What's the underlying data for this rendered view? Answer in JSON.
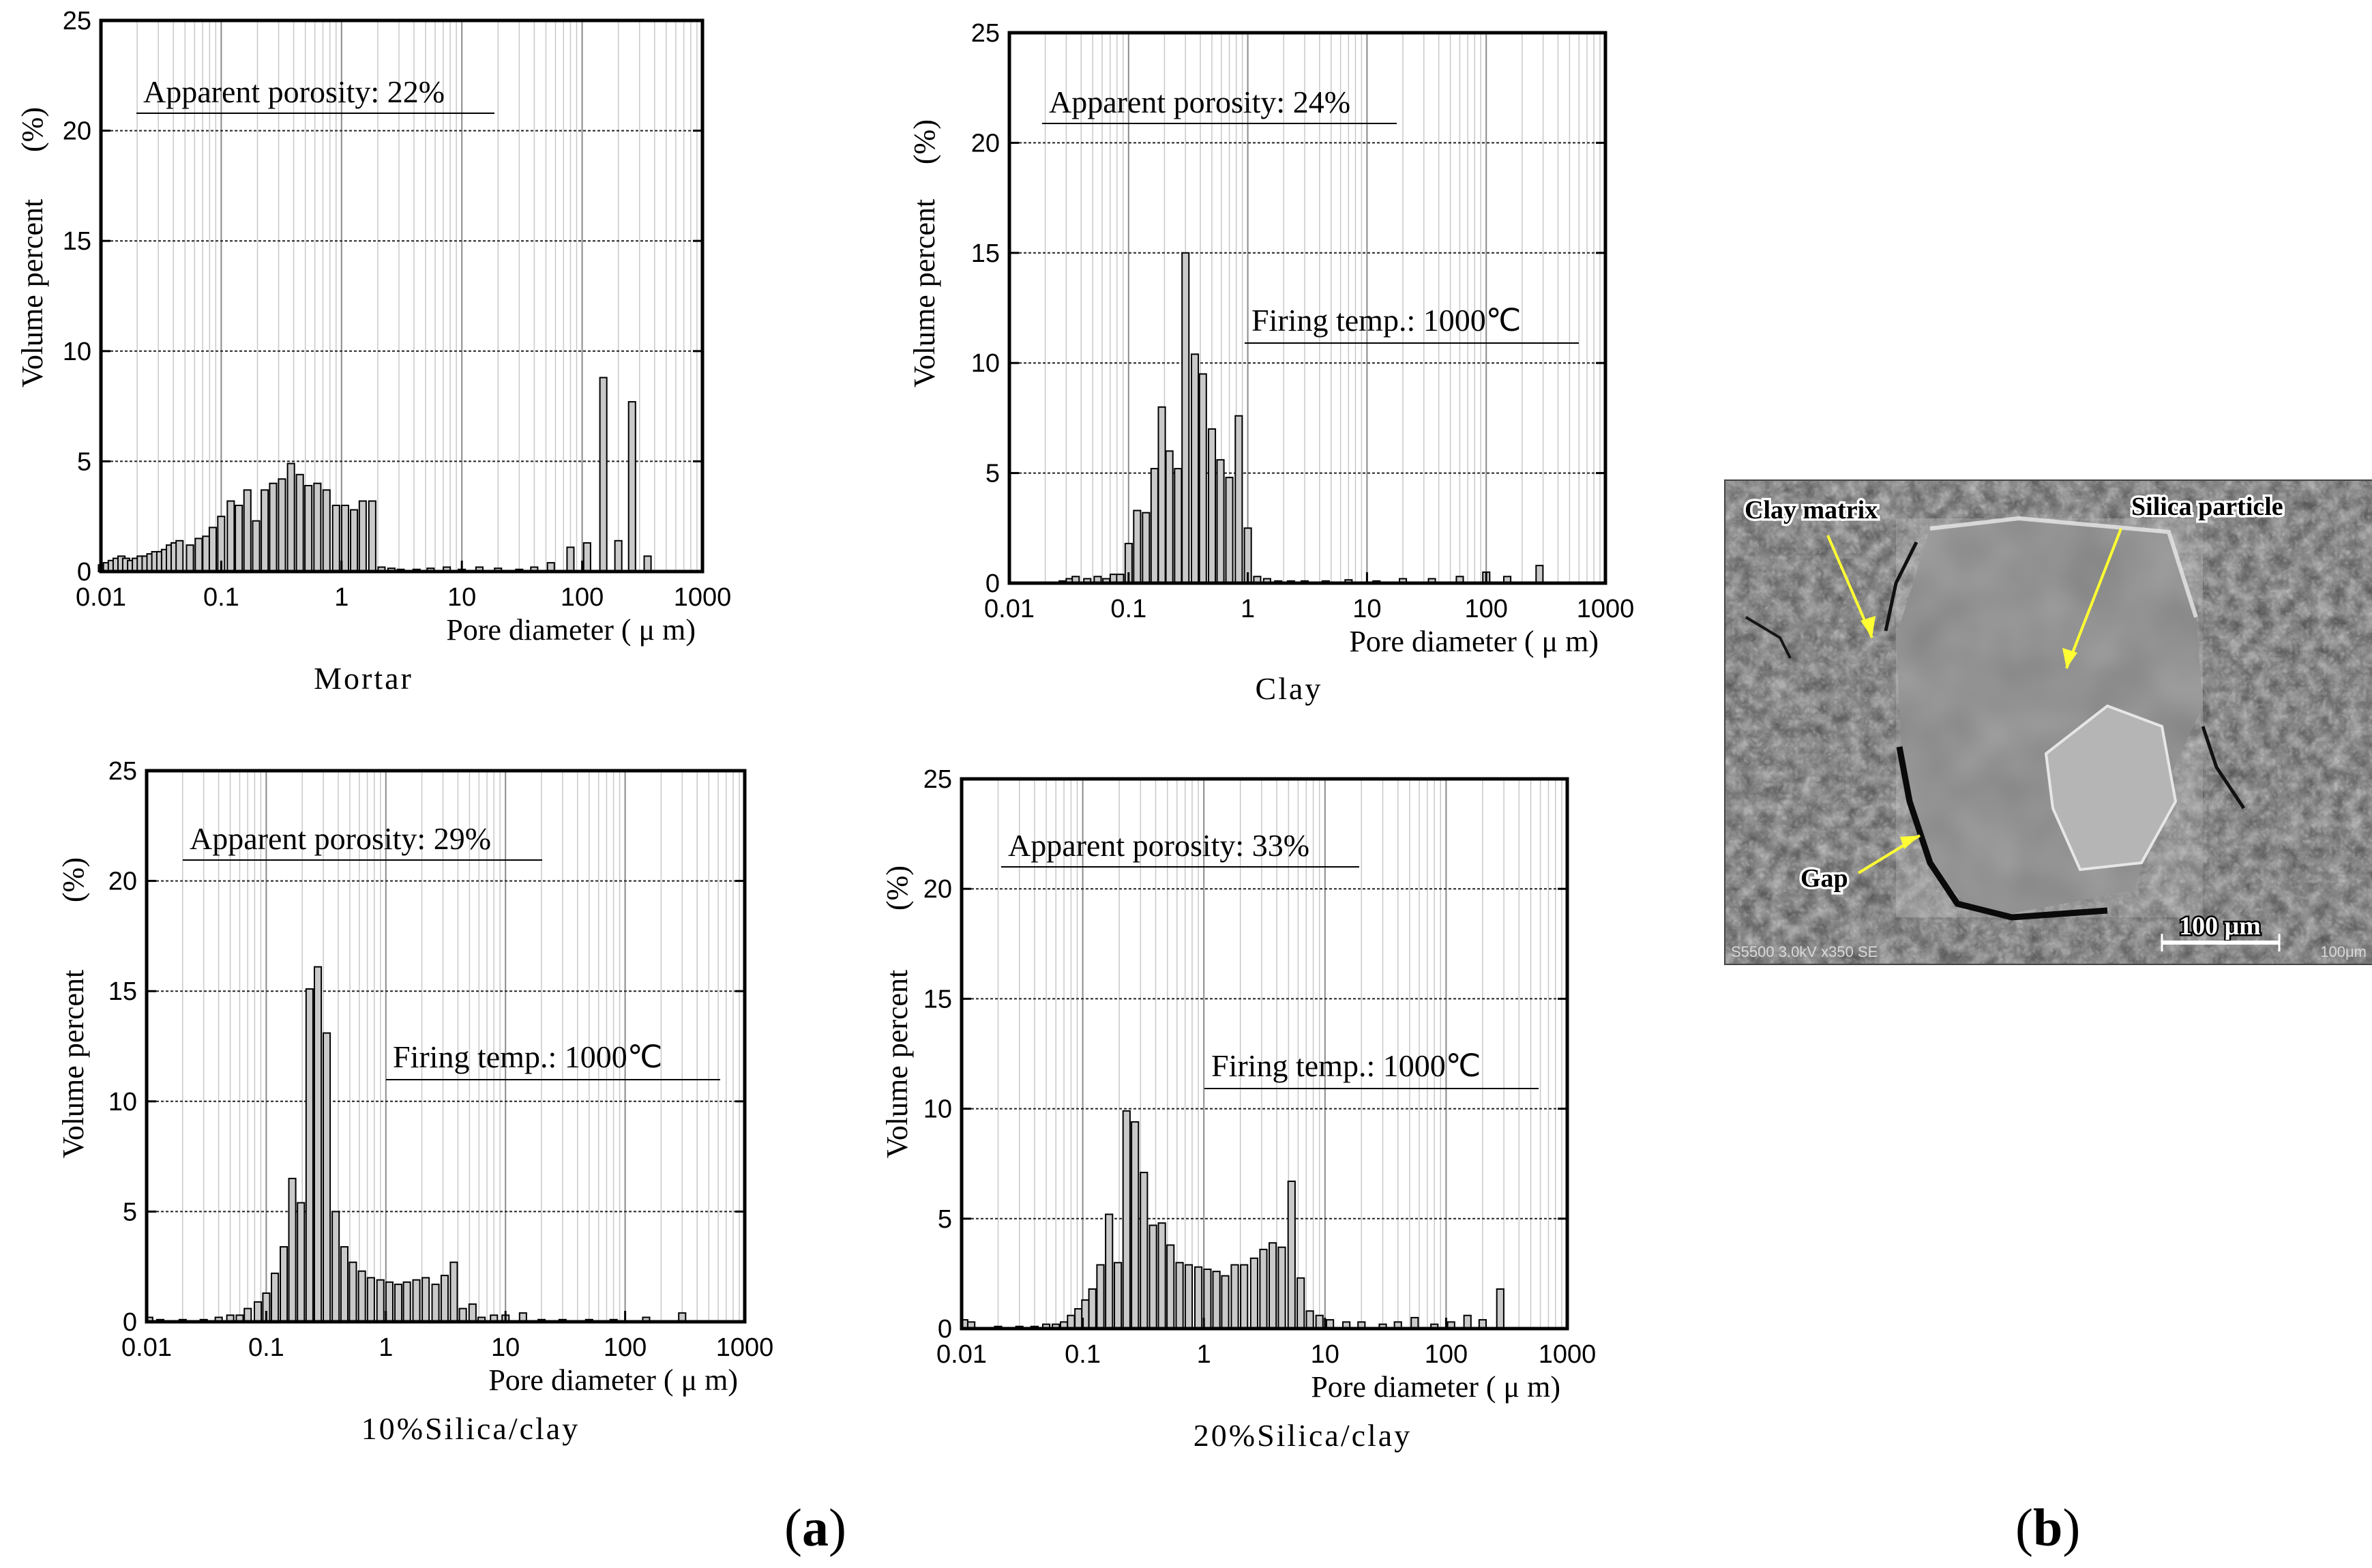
{
  "panel_labels": {
    "a": "a",
    "b": "b"
  },
  "paren_open": "(",
  "paren_close": ")",
  "axis_text": {
    "ylabel": "Volume percent",
    "ylabel_unit": "(%)",
    "xlabel": "Pore diameter ( μ m)",
    "firing_temp": "Firing temp.: 1000℃"
  },
  "chart_data": [
    {
      "type": "bar",
      "title": "Mortar",
      "annotation": "Apparent porosity: 22%",
      "firing_temp": false,
      "xlabel": "Pore diameter ( μ m)",
      "ylabel": "Volume percent (%)",
      "xscale": "log",
      "xlim": [
        0.01,
        1000
      ],
      "ylim": [
        0,
        25
      ],
      "xticks": [
        "0.01",
        "0.1",
        "1",
        "10",
        "100",
        "1000"
      ],
      "yticks": [
        "0",
        "5",
        "10",
        "15",
        "20",
        "25"
      ],
      "x": [
        0.0102,
        0.0112,
        0.0123,
        0.0135,
        0.0148,
        0.0162,
        0.0178,
        0.0195,
        0.0214,
        0.0235,
        0.0258,
        0.0283,
        0.0311,
        0.0341,
        0.0374,
        0.041,
        0.045,
        0.055,
        0.065,
        0.075,
        0.085,
        0.1,
        0.12,
        0.14,
        0.165,
        0.195,
        0.23,
        0.27,
        0.32,
        0.38,
        0.45,
        0.53,
        0.63,
        0.75,
        0.9,
        1.07,
        1.27,
        1.5,
        1.8,
        2.15,
        2.6,
        3.1,
        4.2,
        5.5,
        7.5,
        10,
        14,
        20,
        30,
        40,
        55,
        80,
        110,
        150,
        200,
        260,
        350
      ],
      "values": [
        0.3,
        0.4,
        0.5,
        0.6,
        0.7,
        0.6,
        0.5,
        0.6,
        0.7,
        0.7,
        0.8,
        0.9,
        0.9,
        1.0,
        1.2,
        1.3,
        1.4,
        1.2,
        1.5,
        1.6,
        2.0,
        2.5,
        3.2,
        3.0,
        3.7,
        2.3,
        3.7,
        4.0,
        4.2,
        4.9,
        4.4,
        3.9,
        4.0,
        3.7,
        3.0,
        3.0,
        2.8,
        3.2,
        3.2,
        0.2,
        0.15,
        0.1,
        0.1,
        0.15,
        0.2,
        0.1,
        0.2,
        0.15,
        0.1,
        0.2,
        0.4,
        1.1,
        1.3,
        8.8,
        1.4,
        7.7,
        0.7
      ]
    },
    {
      "type": "bar",
      "title": "Clay",
      "annotation": "Apparent porosity: 24%",
      "firing_temp": true,
      "xlabel": "Pore diameter ( μ m)",
      "ylabel": "Volume percent (%)",
      "xscale": "log",
      "xlim": [
        0.01,
        1000
      ],
      "ylim": [
        0,
        25
      ],
      "xticks": [
        "0.01",
        "0.1",
        "1",
        "10",
        "100",
        "1000"
      ],
      "yticks": [
        "0",
        "5",
        "10",
        "15",
        "20",
        "25"
      ],
      "x": [
        0.028,
        0.032,
        0.036,
        0.045,
        0.055,
        0.065,
        0.075,
        0.085,
        0.1,
        0.118,
        0.14,
        0.165,
        0.19,
        0.22,
        0.26,
        0.3,
        0.36,
        0.42,
        0.5,
        0.59,
        0.7,
        0.84,
        1.0,
        1.2,
        1.45,
        1.8,
        2.3,
        3.0,
        4.5,
        7,
        12,
        20,
        35,
        60,
        100,
        150,
        280
      ],
      "values": [
        0.1,
        0.2,
        0.3,
        0.2,
        0.3,
        0.2,
        0.4,
        0.4,
        1.8,
        3.3,
        3.2,
        5.2,
        8.0,
        6.0,
        5.2,
        15.0,
        10.4,
        9.5,
        7.0,
        5.6,
        4.8,
        7.6,
        2.5,
        0.3,
        0.2,
        0.1,
        0.1,
        0.1,
        0.1,
        0.15,
        0.1,
        0.2,
        0.2,
        0.3,
        0.5,
        0.3,
        0.8
      ]
    },
    {
      "type": "bar",
      "title": "10%Silica/clay",
      "annotation": "Apparent porosity: 29%",
      "firing_temp": true,
      "xlabel": "Pore diameter ( μ m)",
      "ylabel": "Volume percent (%)",
      "xscale": "log",
      "xlim": [
        0.01,
        1000
      ],
      "ylim": [
        0,
        25
      ],
      "xticks": [
        "0.01",
        "0.1",
        "1",
        "10",
        "100",
        "1000"
      ],
      "yticks": [
        "0",
        "5",
        "10",
        "15",
        "20",
        "25"
      ],
      "x": [
        0.0105,
        0.013,
        0.02,
        0.03,
        0.04,
        0.05,
        0.06,
        0.07,
        0.085,
        0.1,
        0.118,
        0.14,
        0.165,
        0.195,
        0.23,
        0.27,
        0.32,
        0.38,
        0.45,
        0.53,
        0.63,
        0.75,
        0.9,
        1.07,
        1.27,
        1.5,
        1.8,
        2.15,
        2.6,
        3.1,
        3.7,
        4.4,
        5.3,
        6.3,
        8,
        10,
        14,
        20,
        30,
        50,
        80,
        150,
        300
      ],
      "values": [
        0.2,
        0.1,
        0.1,
        0.1,
        0.2,
        0.3,
        0.3,
        0.6,
        0.9,
        1.3,
        2.2,
        3.4,
        6.5,
        5.4,
        15.1,
        16.1,
        13.1,
        5.0,
        3.4,
        2.7,
        2.3,
        2.0,
        1.9,
        1.8,
        1.7,
        1.8,
        1.9,
        2.0,
        1.7,
        2.1,
        2.7,
        0.6,
        0.8,
        0.2,
        0.3,
        0.3,
        0.4,
        0.1,
        0.1,
        0.1,
        0.1,
        0.2,
        0.4
      ]
    },
    {
      "type": "bar",
      "title": "20%Silica/clay",
      "annotation": "Apparent porosity: 33%",
      "firing_temp": true,
      "xlabel": "Pore diameter ( μ m)",
      "ylabel": "Volume percent (%)",
      "xscale": "log",
      "xlim": [
        0.01,
        1000
      ],
      "ylim": [
        0,
        25
      ],
      "xticks": [
        "0.01",
        "0.1",
        "1",
        "10",
        "100",
        "1000"
      ],
      "yticks": [
        "0",
        "5",
        "10",
        "15",
        "20",
        "25"
      ],
      "x": [
        0.0105,
        0.012,
        0.02,
        0.03,
        0.04,
        0.05,
        0.06,
        0.07,
        0.08,
        0.092,
        0.105,
        0.12,
        0.14,
        0.165,
        0.195,
        0.23,
        0.27,
        0.32,
        0.38,
        0.45,
        0.53,
        0.63,
        0.75,
        0.9,
        1.07,
        1.27,
        1.5,
        1.8,
        2.15,
        2.6,
        3.1,
        3.7,
        4.4,
        5.3,
        6.3,
        7.5,
        9,
        11,
        15,
        20,
        30,
        40,
        55,
        80,
        110,
        150,
        200,
        280
      ],
      "values": [
        0.4,
        0.3,
        0.1,
        0.1,
        0.1,
        0.2,
        0.2,
        0.3,
        0.6,
        0.9,
        1.3,
        1.8,
        2.9,
        5.2,
        3.0,
        9.9,
        9.4,
        7.1,
        4.7,
        4.8,
        3.8,
        3.0,
        2.9,
        2.8,
        2.7,
        2.6,
        2.4,
        2.9,
        2.9,
        3.2,
        3.6,
        3.9,
        3.7,
        6.7,
        2.3,
        0.8,
        0.6,
        0.4,
        0.3,
        0.3,
        0.2,
        0.3,
        0.5,
        0.2,
        0.3,
        0.6,
        0.4,
        1.8
      ]
    }
  ],
  "sem_image": {
    "labels": {
      "clay_matrix": "Clay matrix",
      "silica_particle": "Silica particle",
      "gap": "Gap",
      "scale_bar": "100 μm",
      "footer_left": "S5500 3.0kV x350 SE",
      "footer_right": "100μm"
    }
  }
}
